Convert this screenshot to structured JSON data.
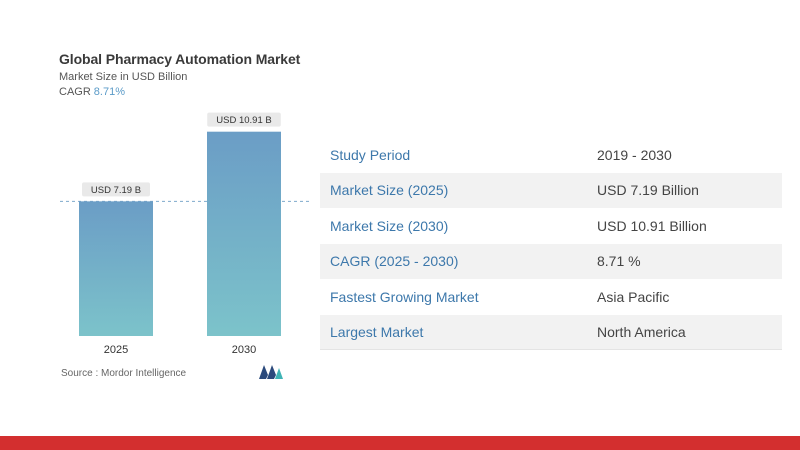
{
  "header": {
    "title": "Global Pharmacy Automation Market",
    "subtitle": "Market Size in USD Billion",
    "cagr_label": "CAGR",
    "cagr_value": "8.71%"
  },
  "chart_data": {
    "type": "bar",
    "title": "Global Pharmacy Automation Market",
    "ylabel": "Market Size in USD Billion",
    "categories": [
      "2025",
      "2030"
    ],
    "values": [
      7.19,
      10.91
    ],
    "data_labels": [
      "USD 7.19 B",
      "USD 10.91 B"
    ],
    "ylim": [
      0,
      11
    ],
    "grid": false,
    "reference_line_at": 7.19,
    "colors": {
      "bar_top": "#6b9dc6",
      "bar_bottom": "#7cc3ca",
      "label_bg": "#e9e9e9",
      "dashed_line": "#7fa9cc"
    }
  },
  "source": "Source :  Mordor Intelligence",
  "stats": [
    {
      "label": "Study Period",
      "value": "2019 - 2030"
    },
    {
      "label": "Market Size (2025)",
      "value": "USD 7.19 Billion"
    },
    {
      "label": "Market Size (2030)",
      "value": "USD 10.91 Billion"
    },
    {
      "label": "CAGR (2025 - 2030)",
      "value": "8.71 %"
    },
    {
      "label": "Fastest Growing Market",
      "value": "Asia Pacific"
    },
    {
      "label": "Largest Market",
      "value": "North America"
    }
  ],
  "colors": {
    "accent_blue": "#3d78ab",
    "brand_red": "#d32f2f"
  }
}
